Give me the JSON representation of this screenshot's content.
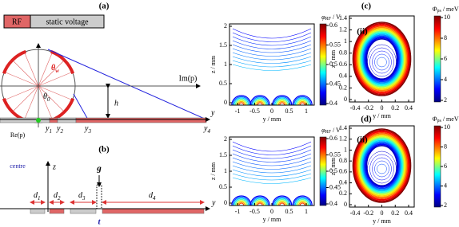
{
  "panel_a": {
    "label": "(a)",
    "legend": [
      "RF",
      "static voltage"
    ],
    "im_axis": "Im(p)",
    "re_axis": "Re(p)",
    "y_axis": "y",
    "h": "h",
    "theta_w": [
      "θ",
      "w"
    ],
    "theta_0": [
      "θ",
      "0"
    ],
    "points": [
      [
        "y",
        "1"
      ],
      [
        "y",
        "2"
      ],
      [
        "y",
        "3"
      ],
      [
        "y",
        "4"
      ]
    ]
  },
  "panel_b": {
    "label": "(b)",
    "centre": "centre",
    "z_axis": "z",
    "y_axis": "y",
    "gap": "g",
    "thickness": "t",
    "widths": [
      [
        "d",
        "1"
      ],
      [
        "d",
        "2"
      ],
      [
        "d",
        "3"
      ],
      [
        "d",
        "4"
      ]
    ]
  },
  "potential_plots": {
    "colorbar_symbol": "φ",
    "colorbar_sub": "RF",
    "colorbar_unit": " / V",
    "x_label": "y / mm",
    "y_label": "z / mm",
    "xticks": [
      -1,
      -0.5,
      0,
      0.5,
      1
    ],
    "yticks": [
      0,
      0.5,
      1,
      1.5,
      2
    ],
    "cticks": [
      0.4,
      0.45,
      0.5,
      0.55,
      0.6
    ]
  },
  "pseudo_plots": {
    "labels": [
      "(c)",
      "(d)"
    ],
    "inset": "(ii)",
    "colorbar_symbol": "Φ",
    "colorbar_sub": "ps",
    "colorbar_unit": " / meV",
    "x_label": "y / mm",
    "y_label": "z / mm",
    "xticks": [
      -0.4,
      -0.2,
      0,
      0.2,
      0.4
    ],
    "yticks": [
      0,
      0.2,
      0.4,
      0.6,
      0.8,
      1,
      1.2,
      1.4
    ],
    "cticks": [
      2,
      4,
      6,
      8,
      10
    ]
  }
}
